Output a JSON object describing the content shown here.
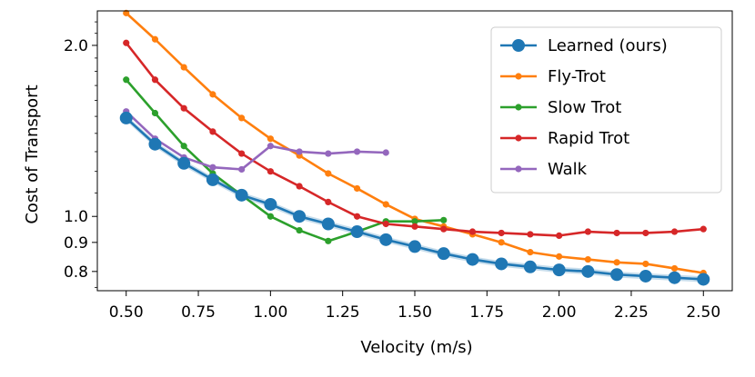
{
  "chart_data": {
    "type": "line",
    "title": "",
    "xlabel": "Velocity (m/s)",
    "ylabel": "Cost of Transport",
    "xlim": [
      0.4,
      2.6
    ],
    "ylim": [
      0.74,
      2.3
    ],
    "y_scale": "log",
    "x_ticks": [
      0.5,
      0.75,
      1.0,
      1.25,
      1.5,
      1.75,
      2.0,
      2.25,
      2.5
    ],
    "x_tick_labels": [
      "0.50",
      "0.75",
      "1.00",
      "1.25",
      "1.50",
      "1.75",
      "2.00",
      "2.25",
      "2.50"
    ],
    "y_ticks": [
      0.8,
      0.9,
      1.0,
      2.0
    ],
    "y_tick_labels": [
      "0.8",
      "0.9",
      "1.0",
      "2.0"
    ],
    "grid": false,
    "legend_position": "top-right",
    "series": [
      {
        "name": "Learned (ours)",
        "color": "#1f77b4",
        "marker": "large-circle",
        "band": true,
        "x": [
          0.5,
          0.6,
          0.7,
          0.8,
          0.9,
          1.0,
          1.1,
          1.2,
          1.3,
          1.4,
          1.5,
          1.6,
          1.7,
          1.8,
          1.9,
          2.0,
          2.1,
          2.2,
          2.3,
          2.4,
          2.5
        ],
        "y": [
          1.49,
          1.34,
          1.24,
          1.16,
          1.09,
          1.05,
          1.0,
          0.97,
          0.94,
          0.91,
          0.885,
          0.86,
          0.84,
          0.825,
          0.815,
          0.805,
          0.8,
          0.79,
          0.785,
          0.78,
          0.775
        ]
      },
      {
        "name": "Fly-Trot",
        "color": "#ff7f0e",
        "marker": "small-circle",
        "x": [
          0.5,
          0.6,
          0.7,
          0.8,
          0.9,
          1.0,
          1.1,
          1.2,
          1.3,
          1.4,
          1.5,
          1.6,
          1.7,
          1.8,
          1.9,
          2.0,
          2.1,
          2.2,
          2.3,
          2.4,
          2.5
        ],
        "y": [
          2.28,
          2.05,
          1.83,
          1.64,
          1.49,
          1.37,
          1.28,
          1.19,
          1.12,
          1.05,
          0.99,
          0.96,
          0.93,
          0.9,
          0.865,
          0.85,
          0.84,
          0.83,
          0.825,
          0.81,
          0.795
        ]
      },
      {
        "name": "Slow Trot",
        "color": "#2ca02c",
        "marker": "small-circle",
        "x": [
          0.5,
          0.6,
          0.7,
          0.8,
          0.9,
          1.0,
          1.1,
          1.2,
          1.3,
          1.4,
          1.5,
          1.6
        ],
        "y": [
          1.74,
          1.52,
          1.33,
          1.19,
          1.09,
          1.0,
          0.945,
          0.905,
          0.94,
          0.98,
          0.98,
          0.985
        ]
      },
      {
        "name": "Rapid Trot",
        "color": "#d62728",
        "marker": "small-circle",
        "x": [
          0.5,
          0.6,
          0.7,
          0.8,
          0.9,
          1.0,
          1.1,
          1.2,
          1.3,
          1.4,
          1.5,
          1.6,
          1.7,
          1.8,
          1.9,
          2.0,
          2.1,
          2.2,
          2.3,
          2.4,
          2.5
        ],
        "y": [
          2.02,
          1.74,
          1.55,
          1.41,
          1.29,
          1.2,
          1.13,
          1.06,
          1.0,
          0.97,
          0.96,
          0.95,
          0.94,
          0.935,
          0.93,
          0.925,
          0.94,
          0.935,
          0.935,
          0.94,
          0.95
        ]
      },
      {
        "name": "Walk",
        "color": "#9467bd",
        "marker": "small-circle",
        "x": [
          0.5,
          0.6,
          0.7,
          0.8,
          0.9,
          1.0,
          1.1,
          1.2,
          1.3,
          1.4
        ],
        "y": [
          1.53,
          1.37,
          1.27,
          1.22,
          1.21,
          1.33,
          1.3,
          1.29,
          1.3,
          1.295
        ]
      }
    ]
  }
}
